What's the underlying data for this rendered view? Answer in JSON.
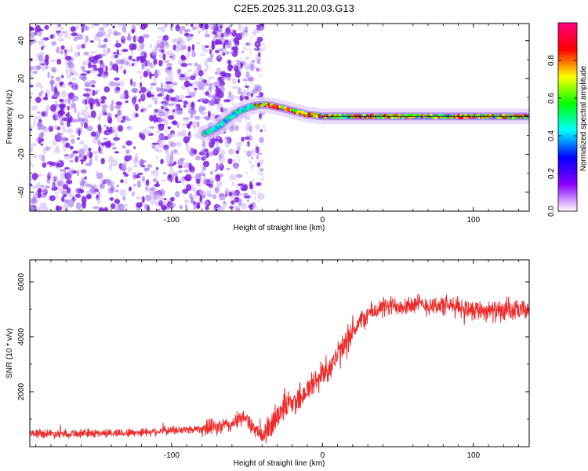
{
  "title": "C2E5.2025.311.20.03.G13",
  "chart_data": [
    {
      "type": "heatmap",
      "name": "spectrogram",
      "xlabel": "Height of straight line (km)",
      "ylabel": "Frequency (Hz)",
      "xlim": [
        -194,
        137
      ],
      "ylim": [
        -50,
        49
      ],
      "xticks": [
        -100,
        0,
        100
      ],
      "yticks": [
        -40,
        -20,
        0,
        20,
        40
      ],
      "colorbar": {
        "label": "Normalized spectral amplitude",
        "range": [
          0,
          1
        ],
        "ticks": [
          "0.0",
          "0.2",
          "0.4",
          "0.6",
          "0.8"
        ],
        "tick_values": [
          0.0,
          0.2,
          0.4,
          0.6,
          0.8
        ],
        "colors": [
          "#ffffff",
          "#8a00ff",
          "#0000ff",
          "#00ffff",
          "#00ff00",
          "#ffff00",
          "#ff0000",
          "#ff007f"
        ]
      },
      "ridge": {
        "x": [
          -78,
          -70,
          -62,
          -55,
          -48,
          -42,
          -36,
          -30,
          -25,
          -20,
          -15,
          -10,
          -5,
          0,
          10,
          20,
          40,
          60,
          80,
          100,
          120,
          135
        ],
        "y": [
          -9,
          -6,
          -1,
          3,
          5,
          6,
          6,
          5,
          4,
          3,
          2,
          1,
          0.5,
          0,
          0,
          0,
          0,
          0,
          0,
          0,
          0,
          0
        ]
      },
      "noise_region_x": [
        -194,
        -40
      ]
    },
    {
      "type": "line",
      "name": "snr",
      "xlabel": "Height of straight line (km)",
      "ylabel": "SNR (10 * v/v)",
      "xlim": [
        -194,
        137
      ],
      "ylim": [
        0,
        6800
      ],
      "xticks": [
        -100,
        0,
        100
      ],
      "yticks": [
        2000,
        4000,
        6000
      ],
      "color": "#ee2a2a",
      "series": [
        {
          "name": "SNR",
          "x": [
            -194,
            -170,
            -150,
            -130,
            -110,
            -90,
            -70,
            -60,
            -55,
            -50,
            -45,
            -40,
            -35,
            -30,
            -25,
            -20,
            -15,
            -10,
            -5,
            0,
            5,
            10,
            15,
            20,
            25,
            30,
            35,
            40,
            50,
            60,
            70,
            80,
            90,
            100,
            110,
            120,
            130,
            137
          ],
          "y": [
            480,
            480,
            490,
            500,
            560,
            620,
            700,
            820,
            1000,
            1050,
            600,
            400,
            600,
            1200,
            1500,
            1600,
            1800,
            2050,
            2350,
            2650,
            2950,
            3300,
            3700,
            4200,
            4550,
            4800,
            4950,
            5050,
            5150,
            5180,
            5150,
            5130,
            5080,
            5000,
            4950,
            4900,
            4950,
            5000
          ]
        }
      ]
    }
  ]
}
